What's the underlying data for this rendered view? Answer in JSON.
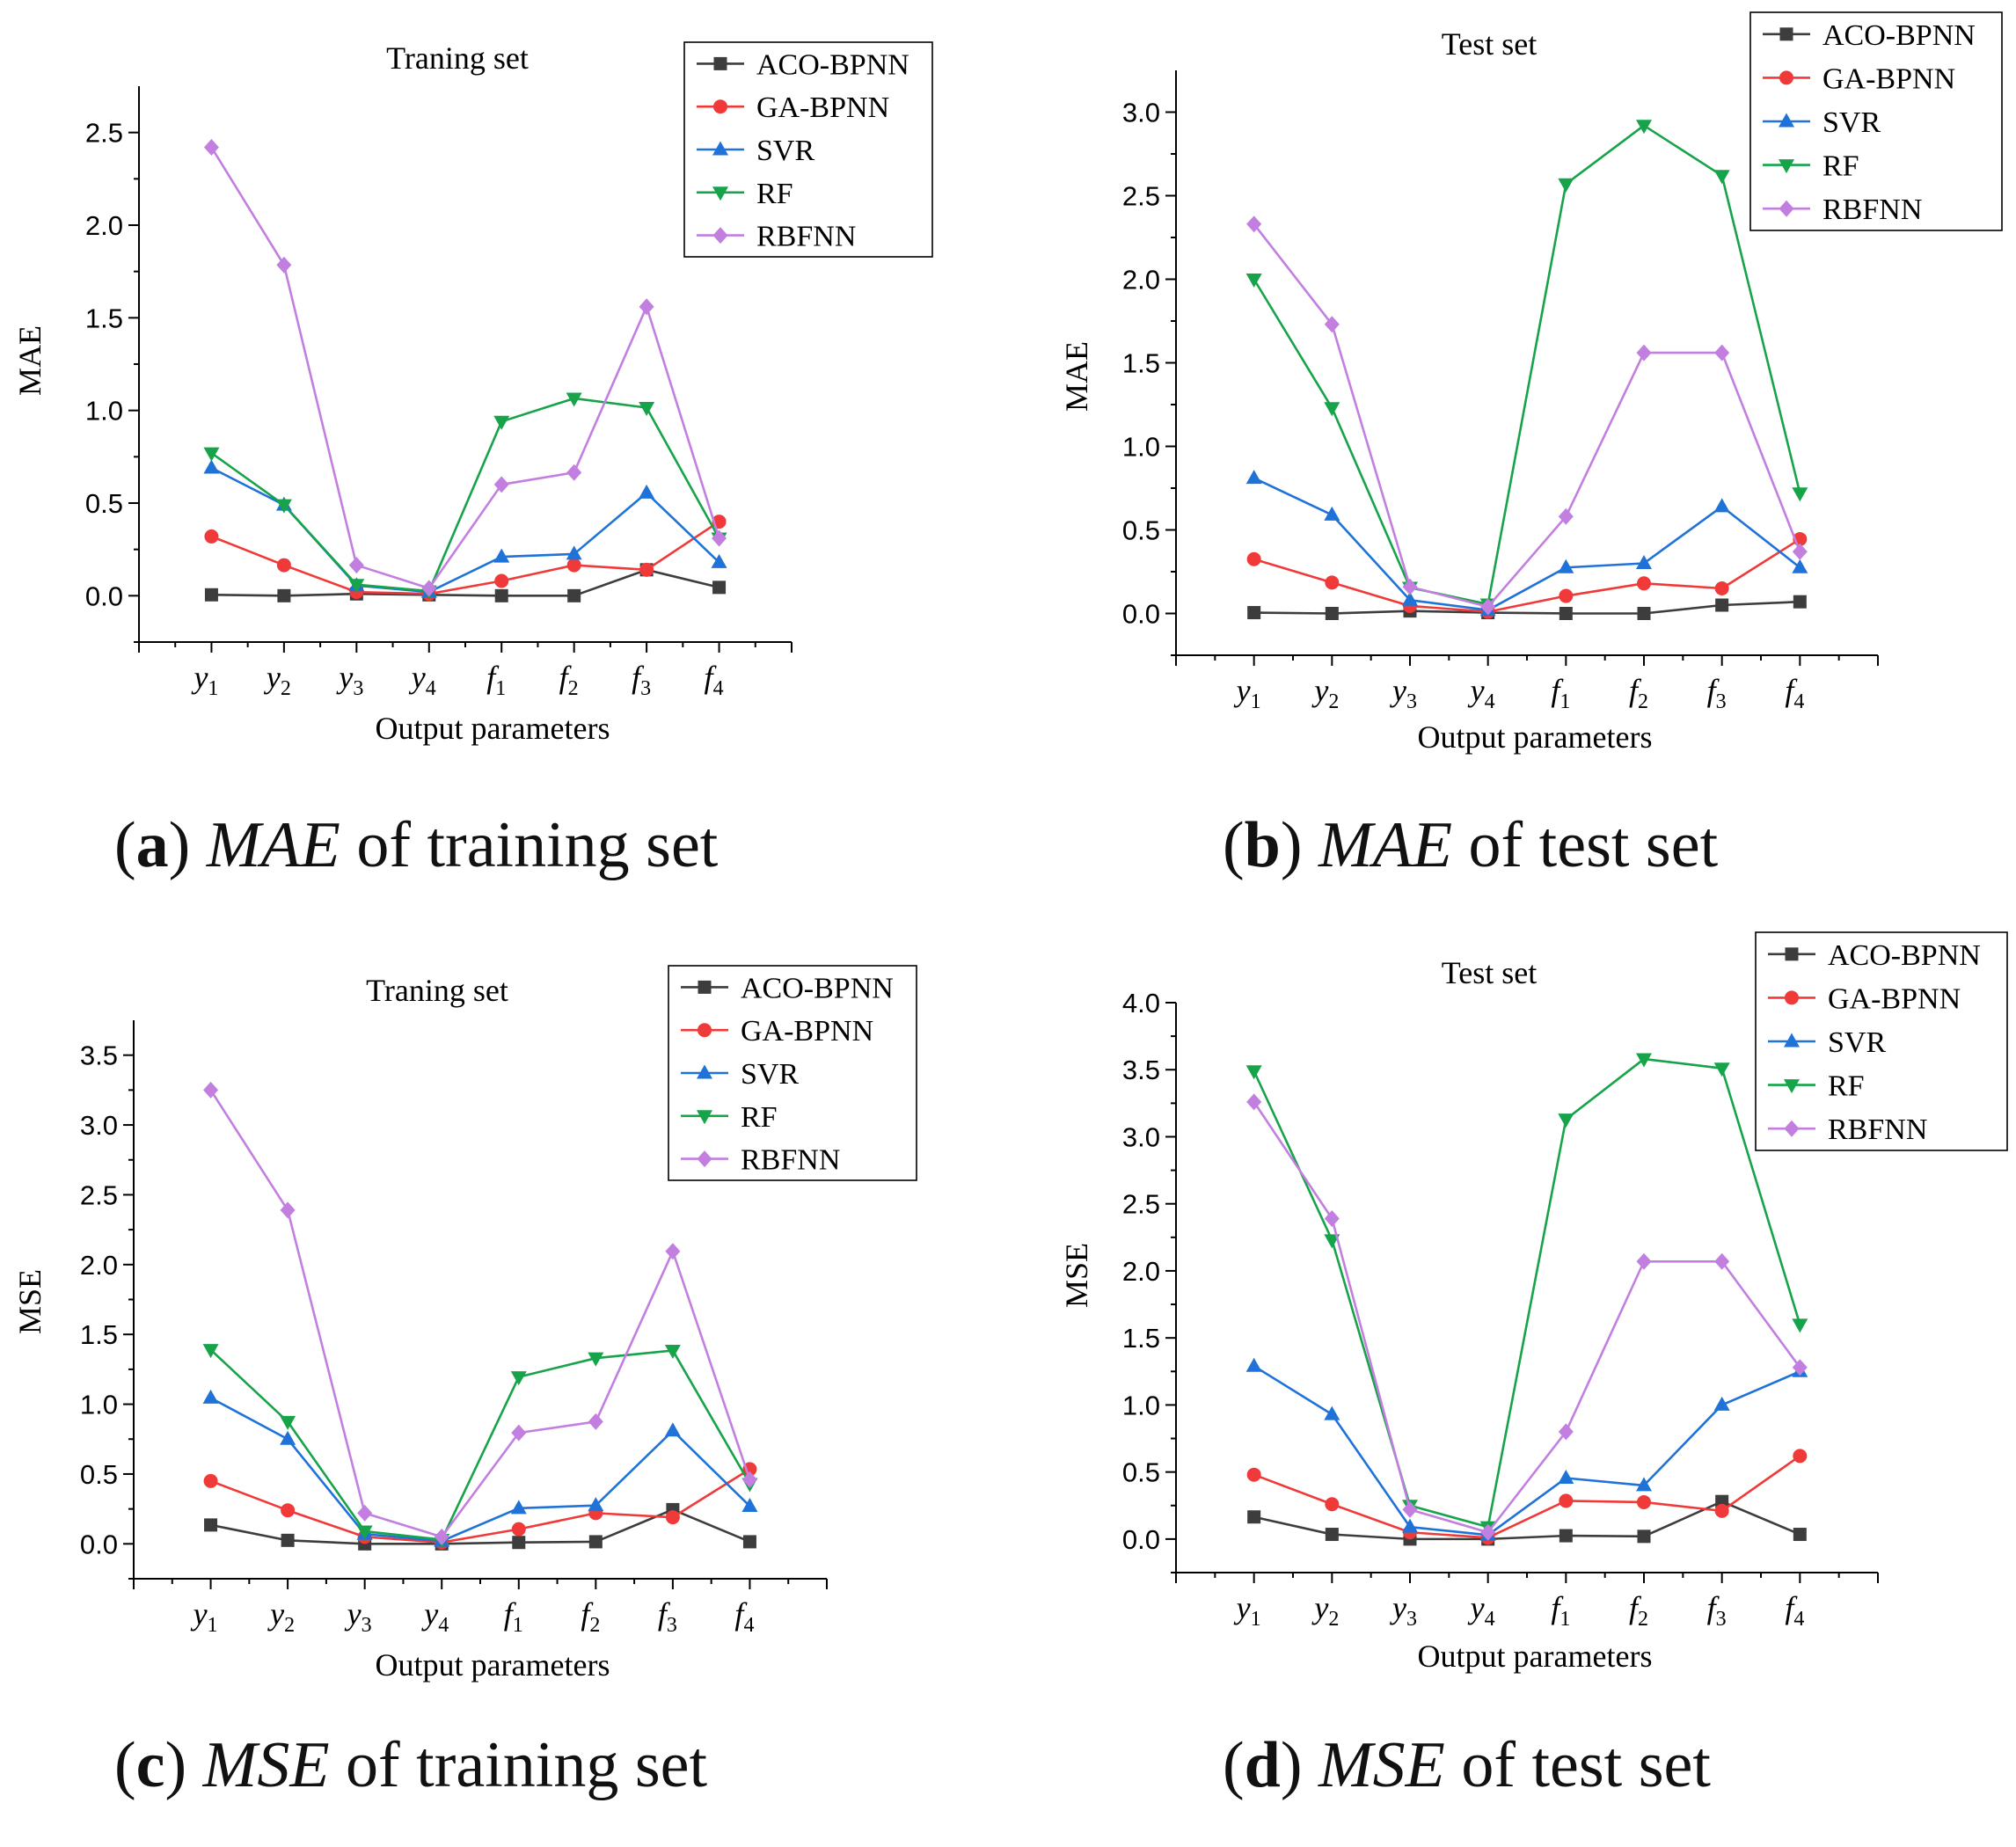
{
  "colors": {
    "ACO-BPNN": "#3d3d3d",
    "GA-BPNN": "#f03a3a",
    "SVR": "#1f73d8",
    "RF": "#17a34a",
    "RBFNN": "#c27fe0"
  },
  "captions": [
    {
      "letter": "a",
      "metric": "MAE",
      "rest": "of training set"
    },
    {
      "letter": "b",
      "metric": "MAE",
      "rest": "of test set"
    },
    {
      "letter": "c",
      "metric": "MSE",
      "rest": "of training set"
    },
    {
      "letter": "d",
      "metric": "MSE",
      "rest": "of test set"
    }
  ],
  "chart_data": [
    {
      "type": "line",
      "title": "Traning set",
      "xlabel": "Output parameters",
      "ylabel": "MAE",
      "categories": [
        "y1",
        "y2",
        "y3",
        "y4",
        "f1",
        "f2",
        "f3",
        "f4"
      ],
      "category_labels": [
        [
          "y",
          "1"
        ],
        [
          "y",
          "2"
        ],
        [
          "y",
          "3"
        ],
        [
          "y",
          "4"
        ],
        [
          "f",
          "1"
        ],
        [
          "f",
          "2"
        ],
        [
          "f",
          "3"
        ],
        [
          "f",
          "4"
        ]
      ],
      "ylim": [
        -0.25,
        2.75
      ],
      "yticks": [
        0.0,
        0.5,
        1.0,
        1.5,
        2.0,
        2.5
      ],
      "ytick_labels": [
        "0.0",
        "0.5",
        "1.0",
        "1.5",
        "2.0",
        "2.5"
      ],
      "legend_position": "top-right",
      "series": [
        {
          "name": "ACO-BPNN",
          "marker": "square",
          "values": [
            0.005,
            0.0,
            0.01,
            0.005,
            0.0,
            0.0,
            0.14,
            0.045
          ]
        },
        {
          "name": "GA-BPNN",
          "marker": "circle",
          "values": [
            0.32,
            0.165,
            0.02,
            0.01,
            0.08,
            0.165,
            0.14,
            0.4
          ]
        },
        {
          "name": "SVR",
          "marker": "triangle-up",
          "values": [
            0.69,
            0.49,
            0.055,
            0.02,
            0.21,
            0.225,
            0.555,
            0.18
          ]
        },
        {
          "name": "RF",
          "marker": "triangle-down",
          "values": [
            0.77,
            0.49,
            0.06,
            0.025,
            0.94,
            1.065,
            1.015,
            0.31
          ]
        },
        {
          "name": "RBFNN",
          "marker": "diamond",
          "values": [
            2.42,
            1.785,
            0.165,
            0.04,
            0.6,
            0.665,
            1.56,
            0.31
          ]
        }
      ]
    },
    {
      "type": "line",
      "title": "Test set",
      "xlabel": "Output parameters",
      "ylabel": "MAE",
      "categories": [
        "y1",
        "y2",
        "y3",
        "y4",
        "f1",
        "f2",
        "f3",
        "f4"
      ],
      "category_labels": [
        [
          "y",
          "1"
        ],
        [
          "y",
          "2"
        ],
        [
          "y",
          "3"
        ],
        [
          "y",
          "4"
        ],
        [
          "f",
          "1"
        ],
        [
          "f",
          "2"
        ],
        [
          "f",
          "3"
        ],
        [
          "f",
          "4"
        ]
      ],
      "ylim": [
        -0.25,
        3.25
      ],
      "yticks": [
        0.0,
        0.5,
        1.0,
        1.5,
        2.0,
        2.5,
        3.0
      ],
      "ytick_labels": [
        "0.0",
        "0.5",
        "1.0",
        "1.5",
        "2.0",
        "2.5",
        "3.0"
      ],
      "legend_position": "top-right",
      "series": [
        {
          "name": "ACO-BPNN",
          "marker": "square",
          "values": [
            0.005,
            0.0,
            0.015,
            0.005,
            0.0,
            0.0,
            0.05,
            0.07
          ]
        },
        {
          "name": "GA-BPNN",
          "marker": "circle",
          "values": [
            0.325,
            0.185,
            0.045,
            0.01,
            0.105,
            0.18,
            0.15,
            0.445
          ]
        },
        {
          "name": "SVR",
          "marker": "triangle-up",
          "values": [
            0.81,
            0.59,
            0.08,
            0.02,
            0.275,
            0.3,
            0.64,
            0.275
          ]
        },
        {
          "name": "RF",
          "marker": "triangle-down",
          "values": [
            2.0,
            1.23,
            0.155,
            0.055,
            2.57,
            2.92,
            2.62,
            0.72
          ]
        },
        {
          "name": "RBFNN",
          "marker": "diamond",
          "values": [
            2.33,
            1.73,
            0.16,
            0.04,
            0.58,
            1.56,
            1.56,
            0.37
          ]
        }
      ]
    },
    {
      "type": "line",
      "title": "Traning set",
      "xlabel": "Output parameters",
      "ylabel": "MSE",
      "categories": [
        "y1",
        "y2",
        "y3",
        "y4",
        "f1",
        "f2",
        "f3",
        "f4"
      ],
      "category_labels": [
        [
          "y",
          "1"
        ],
        [
          "y",
          "2"
        ],
        [
          "y",
          "3"
        ],
        [
          "y",
          "4"
        ],
        [
          "f",
          "1"
        ],
        [
          "f",
          "2"
        ],
        [
          "f",
          "3"
        ],
        [
          "f",
          "4"
        ]
      ],
      "ylim": [
        -0.25,
        3.75
      ],
      "yticks": [
        0.0,
        0.5,
        1.0,
        1.5,
        2.0,
        2.5,
        3.0,
        3.5
      ],
      "ytick_labels": [
        "0.0",
        "0.5",
        "1.0",
        "1.5",
        "2.0",
        "2.5",
        "3.0",
        "3.5"
      ],
      "legend_position": "top-right",
      "series": [
        {
          "name": "ACO-BPNN",
          "marker": "square",
          "values": [
            0.135,
            0.025,
            0.0,
            0.0,
            0.01,
            0.015,
            0.245,
            0.015
          ]
        },
        {
          "name": "GA-BPNN",
          "marker": "circle",
          "values": [
            0.45,
            0.24,
            0.05,
            0.01,
            0.105,
            0.22,
            0.19,
            0.535
          ]
        },
        {
          "name": "SVR",
          "marker": "triangle-up",
          "values": [
            1.045,
            0.75,
            0.07,
            0.02,
            0.255,
            0.275,
            0.81,
            0.27
          ]
        },
        {
          "name": "RF",
          "marker": "triangle-down",
          "values": [
            1.39,
            0.875,
            0.09,
            0.03,
            1.195,
            1.33,
            1.385,
            0.43
          ]
        },
        {
          "name": "RBFNN",
          "marker": "diamond",
          "values": [
            3.25,
            2.39,
            0.22,
            0.05,
            0.795,
            0.875,
            2.095,
            0.46
          ]
        }
      ]
    },
    {
      "type": "line",
      "title": "Test set",
      "xlabel": "Output parameters",
      "ylabel": "MSE",
      "categories": [
        "y1",
        "y2",
        "y3",
        "y4",
        "f1",
        "f2",
        "f3",
        "f4"
      ],
      "category_labels": [
        [
          "y",
          "1"
        ],
        [
          "y",
          "2"
        ],
        [
          "y",
          "3"
        ],
        [
          "y",
          "4"
        ],
        [
          "f",
          "1"
        ],
        [
          "f",
          "2"
        ],
        [
          "f",
          "3"
        ],
        [
          "f",
          "4"
        ]
      ],
      "ylim": [
        -0.25,
        4.0
      ],
      "yticks": [
        0.0,
        0.5,
        1.0,
        1.5,
        2.0,
        2.5,
        3.0,
        3.5,
        4.0
      ],
      "ytick_labels": [
        "0.0",
        "0.5",
        "1.0",
        "1.5",
        "2.0",
        "2.5",
        "3.0",
        "3.5",
        "4.0"
      ],
      "legend_position": "top-right",
      "series": [
        {
          "name": "ACO-BPNN",
          "marker": "square",
          "values": [
            0.165,
            0.035,
            0.0,
            0.0,
            0.025,
            0.02,
            0.28,
            0.035
          ]
        },
        {
          "name": "GA-BPNN",
          "marker": "circle",
          "values": [
            0.48,
            0.26,
            0.05,
            0.01,
            0.285,
            0.275,
            0.21,
            0.62
          ]
        },
        {
          "name": "SVR",
          "marker": "triangle-up",
          "values": [
            1.29,
            0.93,
            0.09,
            0.03,
            0.455,
            0.4,
            1.0,
            1.25
          ]
        },
        {
          "name": "RF",
          "marker": "triangle-down",
          "values": [
            3.49,
            2.23,
            0.25,
            0.09,
            3.13,
            3.58,
            3.51,
            1.6
          ]
        },
        {
          "name": "RBFNN",
          "marker": "diamond",
          "values": [
            3.26,
            2.39,
            0.22,
            0.05,
            0.8,
            2.07,
            2.07,
            1.28
          ]
        }
      ]
    }
  ]
}
